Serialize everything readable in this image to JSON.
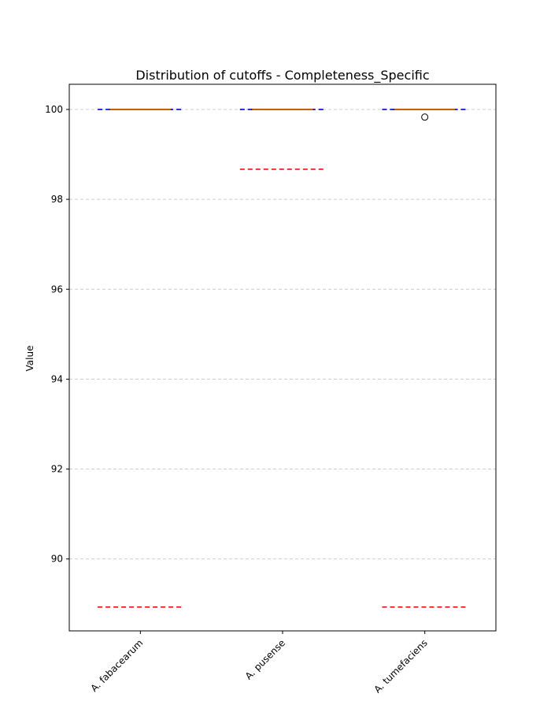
{
  "chart_data": {
    "type": "boxplot",
    "title": "Distribution of cutoffs - Completeness_Specific",
    "xlabel": "",
    "ylabel": "Value",
    "ylim": [
      88.4,
      100.56
    ],
    "yticks": [
      90,
      92,
      94,
      96,
      98,
      100
    ],
    "grid": "y-dashed",
    "categories": [
      "A. fabacearum",
      "A. pusense",
      "A. tumefaciens"
    ],
    "boxes": [
      {
        "q1": 100.0,
        "median": 100.0,
        "q3": 100.0,
        "whisker_low": 100.0,
        "whisker_high": 100.0,
        "outliers": []
      },
      {
        "q1": 100.0,
        "median": 100.0,
        "q3": 100.0,
        "whisker_low": 100.0,
        "whisker_high": 100.0,
        "outliers": []
      },
      {
        "q1": 100.0,
        "median": 100.0,
        "q3": 100.0,
        "whisker_low": 100.0,
        "whisker_high": 100.0,
        "outliers": [
          99.83
        ]
      }
    ],
    "reference_lines": [
      {
        "color": "#0000cc",
        "values": [
          100.0,
          100.0,
          100.0
        ]
      },
      {
        "color": "#dd0000",
        "values": [
          88.93,
          98.67,
          88.93
        ]
      }
    ],
    "colors": {
      "box": "#000000",
      "median": "#ff7f0e",
      "grid": "#cccccc"
    }
  }
}
